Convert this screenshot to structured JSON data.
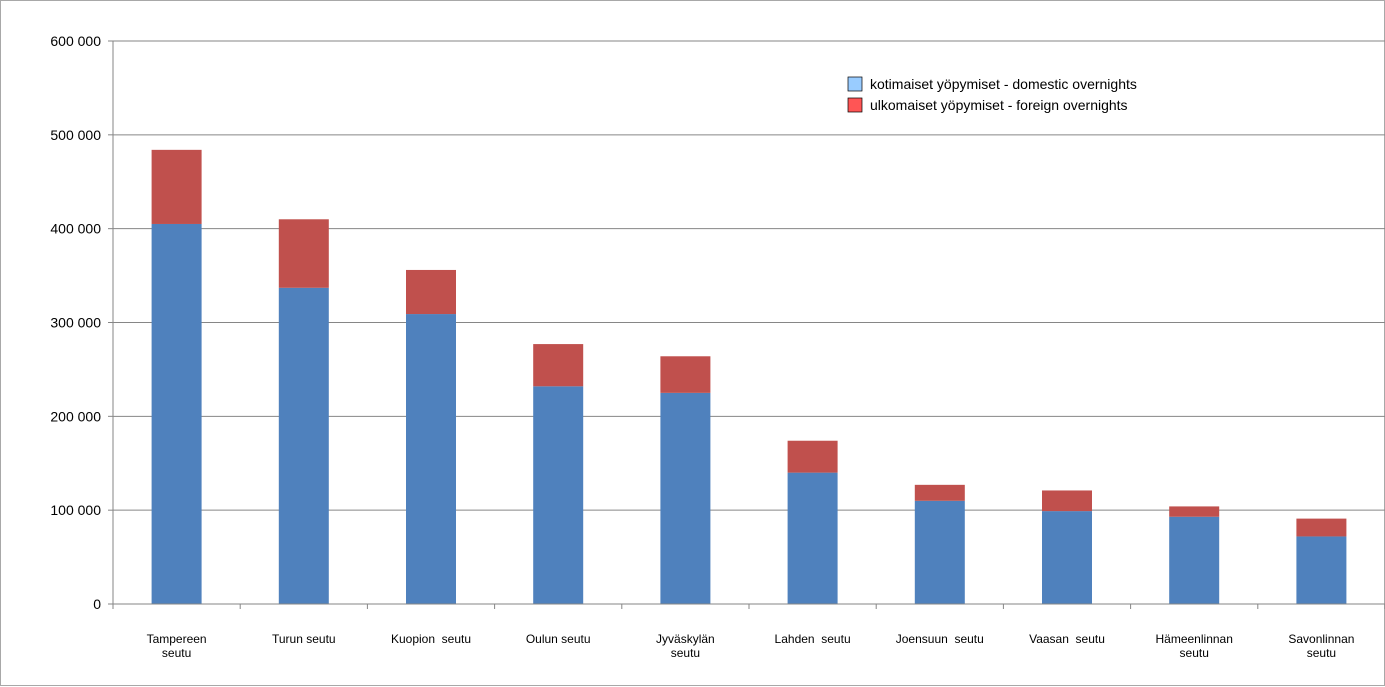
{
  "chart_data": {
    "type": "bar",
    "stacked": true,
    "categories": [
      [
        "Tampereen",
        "seutu"
      ],
      [
        "Turun seutu"
      ],
      [
        "Kuopion  seutu"
      ],
      [
        "Oulun seutu"
      ],
      [
        "Jyväskylän",
        "seutu"
      ],
      [
        "Lahden  seutu"
      ],
      [
        "Joensuun  seutu"
      ],
      [
        "Vaasan  seutu"
      ],
      [
        "Hämeenlinnan",
        "seutu"
      ],
      [
        "Savonlinnan",
        "seutu"
      ]
    ],
    "series": [
      {
        "name": "kotimaiset yöpymiset - domestic overnights",
        "color": "#4f81bd",
        "legend_color": "#99ccff",
        "values": [
          405000,
          337000,
          309000,
          232000,
          225000,
          140000,
          110000,
          99000,
          93000,
          72000
        ]
      },
      {
        "name": "ulkomaiset yöpymiset - foreign overnights",
        "color": "#c0504d",
        "legend_color": "#ff5555",
        "values": [
          79000,
          73000,
          47000,
          45000,
          39000,
          34000,
          17000,
          22000,
          11000,
          19000
        ]
      }
    ],
    "yticks": [
      "0",
      "100 000",
      "200 000",
      "300 000",
      "400 000",
      "500 000",
      "600 000"
    ],
    "ylim": [
      0,
      600000
    ],
    "grid": true,
    "legend_position": "top-right"
  }
}
